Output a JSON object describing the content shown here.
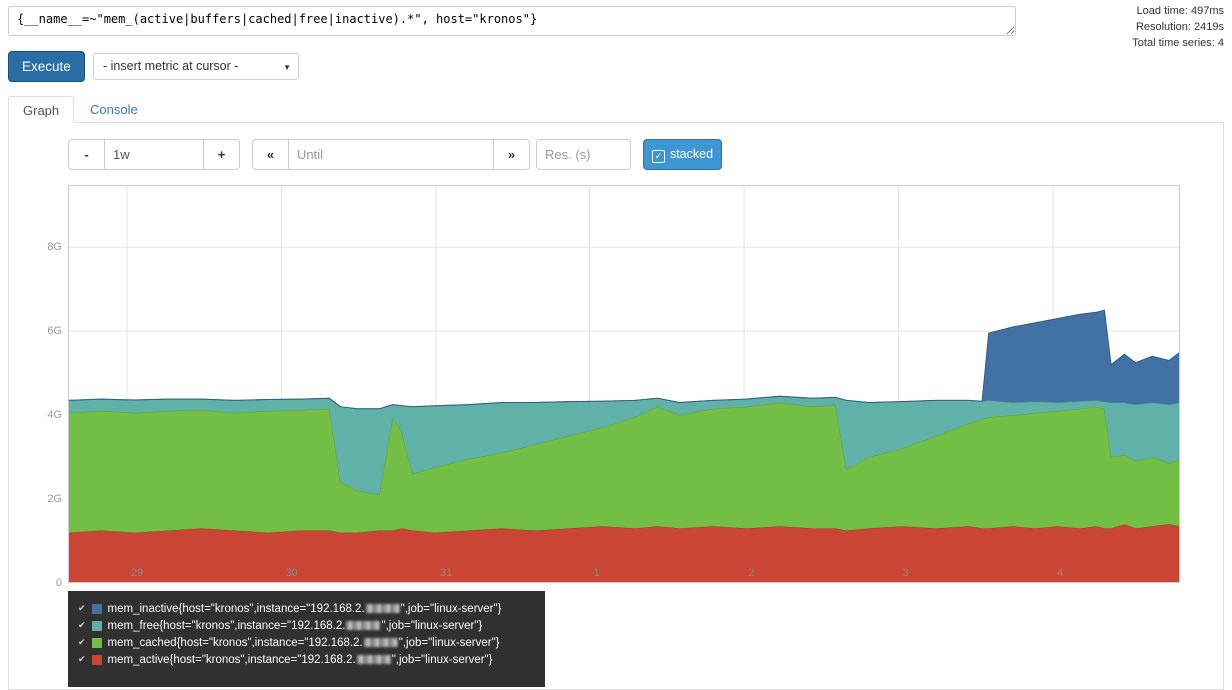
{
  "query_panel": {
    "expression": "{__name__=~\"mem_(active|buffers|cached|free|inactive).*\", host=\"kronos\"}",
    "stats": [
      "Load time: 497ms",
      "Resolution: 2419s",
      "Total time series: 4"
    ],
    "execute_label": "Execute",
    "metric_dropdown_label": "- insert metric at cursor -"
  },
  "tabs": {
    "graph": "Graph",
    "console": "Console"
  },
  "controls": {
    "minus_label": "-",
    "plus_label": "+",
    "range_value": "1w",
    "until_placeholder": "Until",
    "res_placeholder": "Res. (s)",
    "stacked_label": "stacked"
  },
  "icons": {
    "dropdown_caret": "▼",
    "range_back": "«",
    "range_forward": "»",
    "stacked_check": "✓",
    "legend_check": "✔"
  },
  "colors": {
    "primary_button": "#2a6da5",
    "stacked_button": "#3e96d3",
    "link": "#337ab7"
  },
  "chart_data": {
    "type": "area",
    "stacked": true,
    "unit": "G (bytes)",
    "ymax": 9.48,
    "y_ticks": [
      {
        "v": 0,
        "label": "0"
      },
      {
        "v": 2,
        "label": "2G"
      },
      {
        "v": 4,
        "label": "4G"
      },
      {
        "v": 6,
        "label": "6G"
      },
      {
        "v": 8,
        "label": "8G"
      }
    ],
    "x_ticks": [
      {
        "pos": 0.053,
        "label": "29"
      },
      {
        "pos": 0.192,
        "label": "30"
      },
      {
        "pos": 0.331,
        "label": "31"
      },
      {
        "pos": 0.469,
        "label": "1"
      },
      {
        "pos": 0.608,
        "label": "2"
      },
      {
        "pos": 0.747,
        "label": "3"
      },
      {
        "pos": 0.886,
        "label": "4"
      }
    ],
    "x": [
      0,
      0.03,
      0.06,
      0.09,
      0.12,
      0.15,
      0.18,
      0.21,
      0.235,
      0.245,
      0.26,
      0.28,
      0.292,
      0.3,
      0.31,
      0.33,
      0.36,
      0.39,
      0.42,
      0.45,
      0.48,
      0.51,
      0.53,
      0.55,
      0.58,
      0.61,
      0.64,
      0.67,
      0.69,
      0.7,
      0.72,
      0.75,
      0.78,
      0.81,
      0.822,
      0.828,
      0.85,
      0.87,
      0.89,
      0.91,
      0.925,
      0.932,
      0.938,
      0.95,
      0.96,
      0.975,
      0.99,
      1
    ],
    "series": [
      {
        "name": "mem_active",
        "color": "#ca4533",
        "stroke": "#a93729",
        "values": [
          1.2,
          1.25,
          1.2,
          1.25,
          1.3,
          1.25,
          1.2,
          1.25,
          1.25,
          1.2,
          1.2,
          1.25,
          1.25,
          1.3,
          1.25,
          1.2,
          1.25,
          1.3,
          1.25,
          1.3,
          1.35,
          1.3,
          1.35,
          1.3,
          1.35,
          1.3,
          1.35,
          1.3,
          1.3,
          1.25,
          1.3,
          1.35,
          1.3,
          1.35,
          1.3,
          1.3,
          1.35,
          1.3,
          1.35,
          1.3,
          1.35,
          1.3,
          1.3,
          1.4,
          1.3,
          1.35,
          1.4,
          1.35
        ]
      },
      {
        "name": "mem_cached",
        "color": "#73bf45",
        "stroke": "#5ea332",
        "values": [
          2.85,
          2.85,
          2.85,
          2.85,
          2.82,
          2.8,
          2.9,
          2.87,
          2.9,
          1.2,
          1.0,
          0.85,
          2.7,
          2.3,
          1.35,
          1.55,
          1.7,
          1.8,
          2.05,
          2.2,
          2.35,
          2.65,
          2.85,
          2.7,
          2.8,
          2.9,
          2.95,
          2.9,
          2.95,
          1.45,
          1.7,
          1.85,
          2.2,
          2.45,
          2.6,
          2.65,
          2.65,
          2.75,
          2.75,
          2.85,
          2.85,
          2.85,
          1.7,
          1.65,
          1.6,
          1.65,
          1.45,
          1.6
        ]
      },
      {
        "name": "mem_free",
        "color": "#60b2a9",
        "stroke": "#4d968e",
        "values": [
          0.3,
          0.28,
          0.31,
          0.28,
          0.26,
          0.3,
          0.27,
          0.26,
          0.25,
          1.8,
          1.95,
          2.05,
          0.3,
          0.62,
          1.6,
          1.47,
          1.3,
          1.2,
          1.0,
          0.82,
          0.63,
          0.4,
          0.2,
          0.3,
          0.2,
          0.18,
          0.15,
          0.2,
          0.17,
          1.65,
          1.3,
          1.12,
          0.85,
          0.55,
          0.43,
          0.4,
          0.3,
          0.27,
          0.2,
          0.18,
          0.15,
          0.17,
          1.3,
          1.25,
          1.35,
          1.3,
          1.4,
          1.35
        ]
      },
      {
        "name": "mem_inactive",
        "color": "#4272a4",
        "stroke": "#345c87",
        "values": [
          0,
          0,
          0,
          0,
          0,
          0,
          0,
          0,
          0,
          0,
          0,
          0,
          0,
          0,
          0,
          0,
          0,
          0,
          0,
          0,
          0,
          0,
          0,
          0,
          0,
          0,
          0,
          0,
          0,
          0,
          0,
          0,
          0,
          0,
          0,
          1.6,
          1.8,
          1.88,
          2.0,
          2.07,
          2.1,
          2.18,
          0.9,
          1.15,
          1.0,
          1.1,
          1.05,
          1.2
        ]
      }
    ],
    "legend": [
      {
        "series": "mem_inactive",
        "color": "#4272a4",
        "pre": "mem_inactive{host=\"kronos\",instance=\"192.168.2.",
        "redacted": true,
        "post": "\",job=\"linux-server\"}"
      },
      {
        "series": "mem_free",
        "color": "#60b2a9",
        "pre": "mem_free{host=\"kronos\",instance=\"192.168.2.",
        "redacted": true,
        "post": "\",job=\"linux-server\"}"
      },
      {
        "series": "mem_cached",
        "color": "#73bf45",
        "pre": "mem_cached{host=\"kronos\",instance=\"192.168.2.",
        "redacted": true,
        "post": "\",job=\"linux-server\"}"
      },
      {
        "series": "mem_active",
        "color": "#ca4533",
        "pre": "mem_active{host=\"kronos\",instance=\"192.168.2.",
        "redacted": true,
        "post": "\",job=\"linux-server\"}"
      }
    ]
  }
}
